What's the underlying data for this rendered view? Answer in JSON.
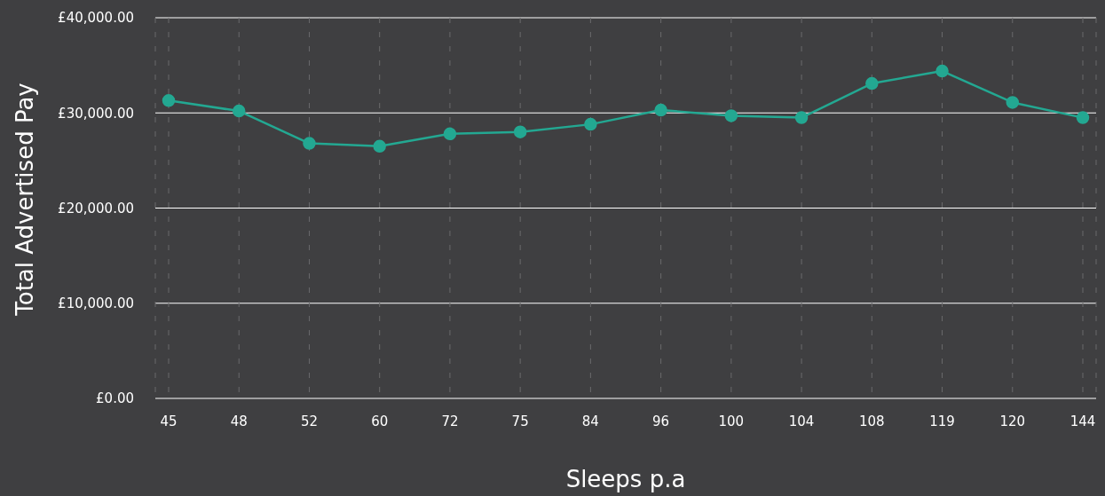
{
  "chart_data": {
    "type": "line",
    "xlabel": "Sleeps p.a",
    "ylabel": "Total Advertised Pay",
    "categories": [
      "45",
      "48",
      "52",
      "60",
      "72",
      "75",
      "84",
      "96",
      "100",
      "104",
      "108",
      "119",
      "120",
      "144"
    ],
    "series": [
      {
        "color": "#23a892",
        "values": [
          31300,
          30200,
          26800,
          26500,
          27800,
          28000,
          28800,
          30300,
          29700,
          29500,
          33100,
          34400,
          31100,
          29500
        ]
      }
    ],
    "ylim": [
      0,
      40000
    ],
    "yticks": [
      {
        "value": 0,
        "label": "£0.00"
      },
      {
        "value": 10000,
        "label": "£10,000.00"
      },
      {
        "value": 20000,
        "label": "£20,000.00"
      },
      {
        "value": 30000,
        "label": "£30,000.00"
      },
      {
        "value": 40000,
        "label": "£40,000.00"
      }
    ],
    "grid": true,
    "marker": "circle",
    "line_style": "solid",
    "legend": false
  }
}
